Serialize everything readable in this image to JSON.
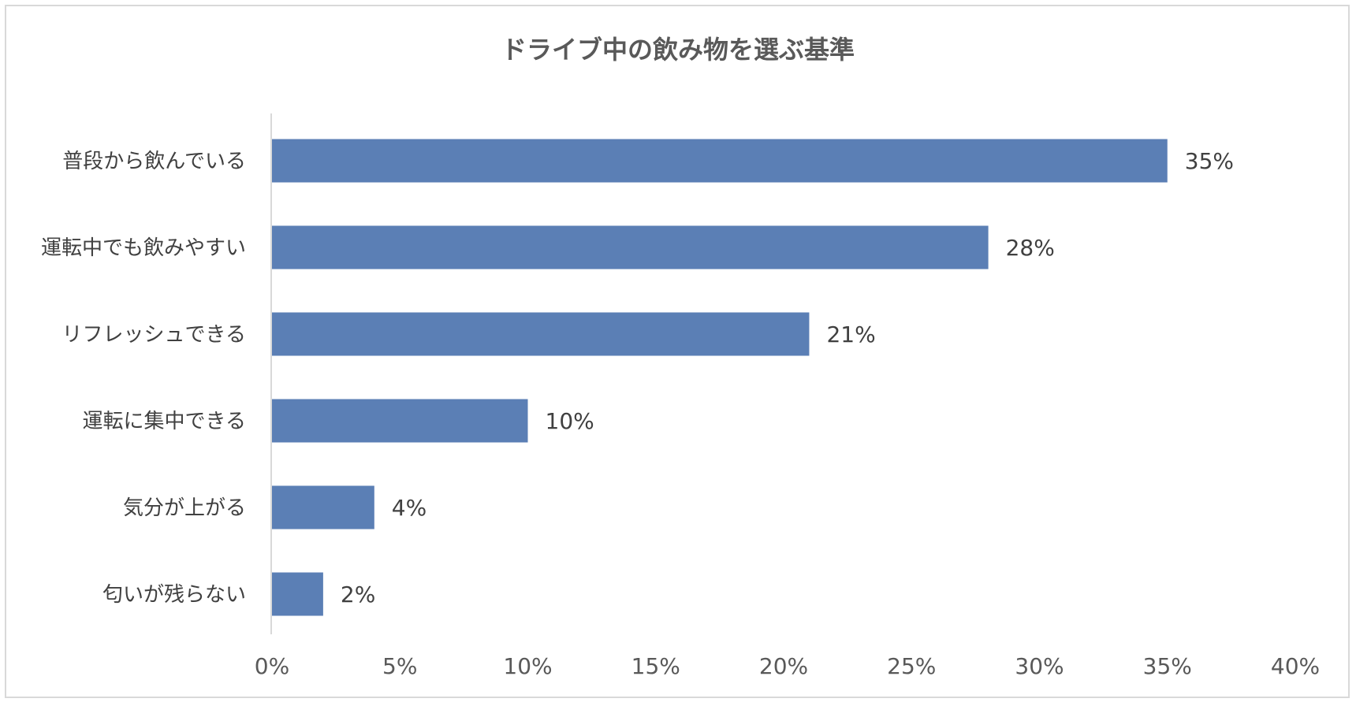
{
  "chart_data": {
    "type": "bar",
    "orientation": "horizontal",
    "title": "ドライブ中の飲み物を選ぶ基準",
    "categories": [
      "普段から飲んでいる",
      "運転中でも飲みやすい",
      "リフレッシュできる",
      "運転に集中できる",
      "気分が上がる",
      "匂いが残らない"
    ],
    "values": [
      35,
      28,
      21,
      10,
      4,
      2
    ],
    "value_labels": [
      "35%",
      "28%",
      "21%",
      "10%",
      "4%",
      "2%"
    ],
    "x_ticks": [
      "0%",
      "5%",
      "10%",
      "15%",
      "20%",
      "25%",
      "30%",
      "35%",
      "40%"
    ],
    "xlim": [
      0,
      40
    ],
    "unit": "%",
    "grid": false,
    "legend": "none",
    "bar_color": "#5b7fb5",
    "axis_color": "#d9d9d9"
  }
}
